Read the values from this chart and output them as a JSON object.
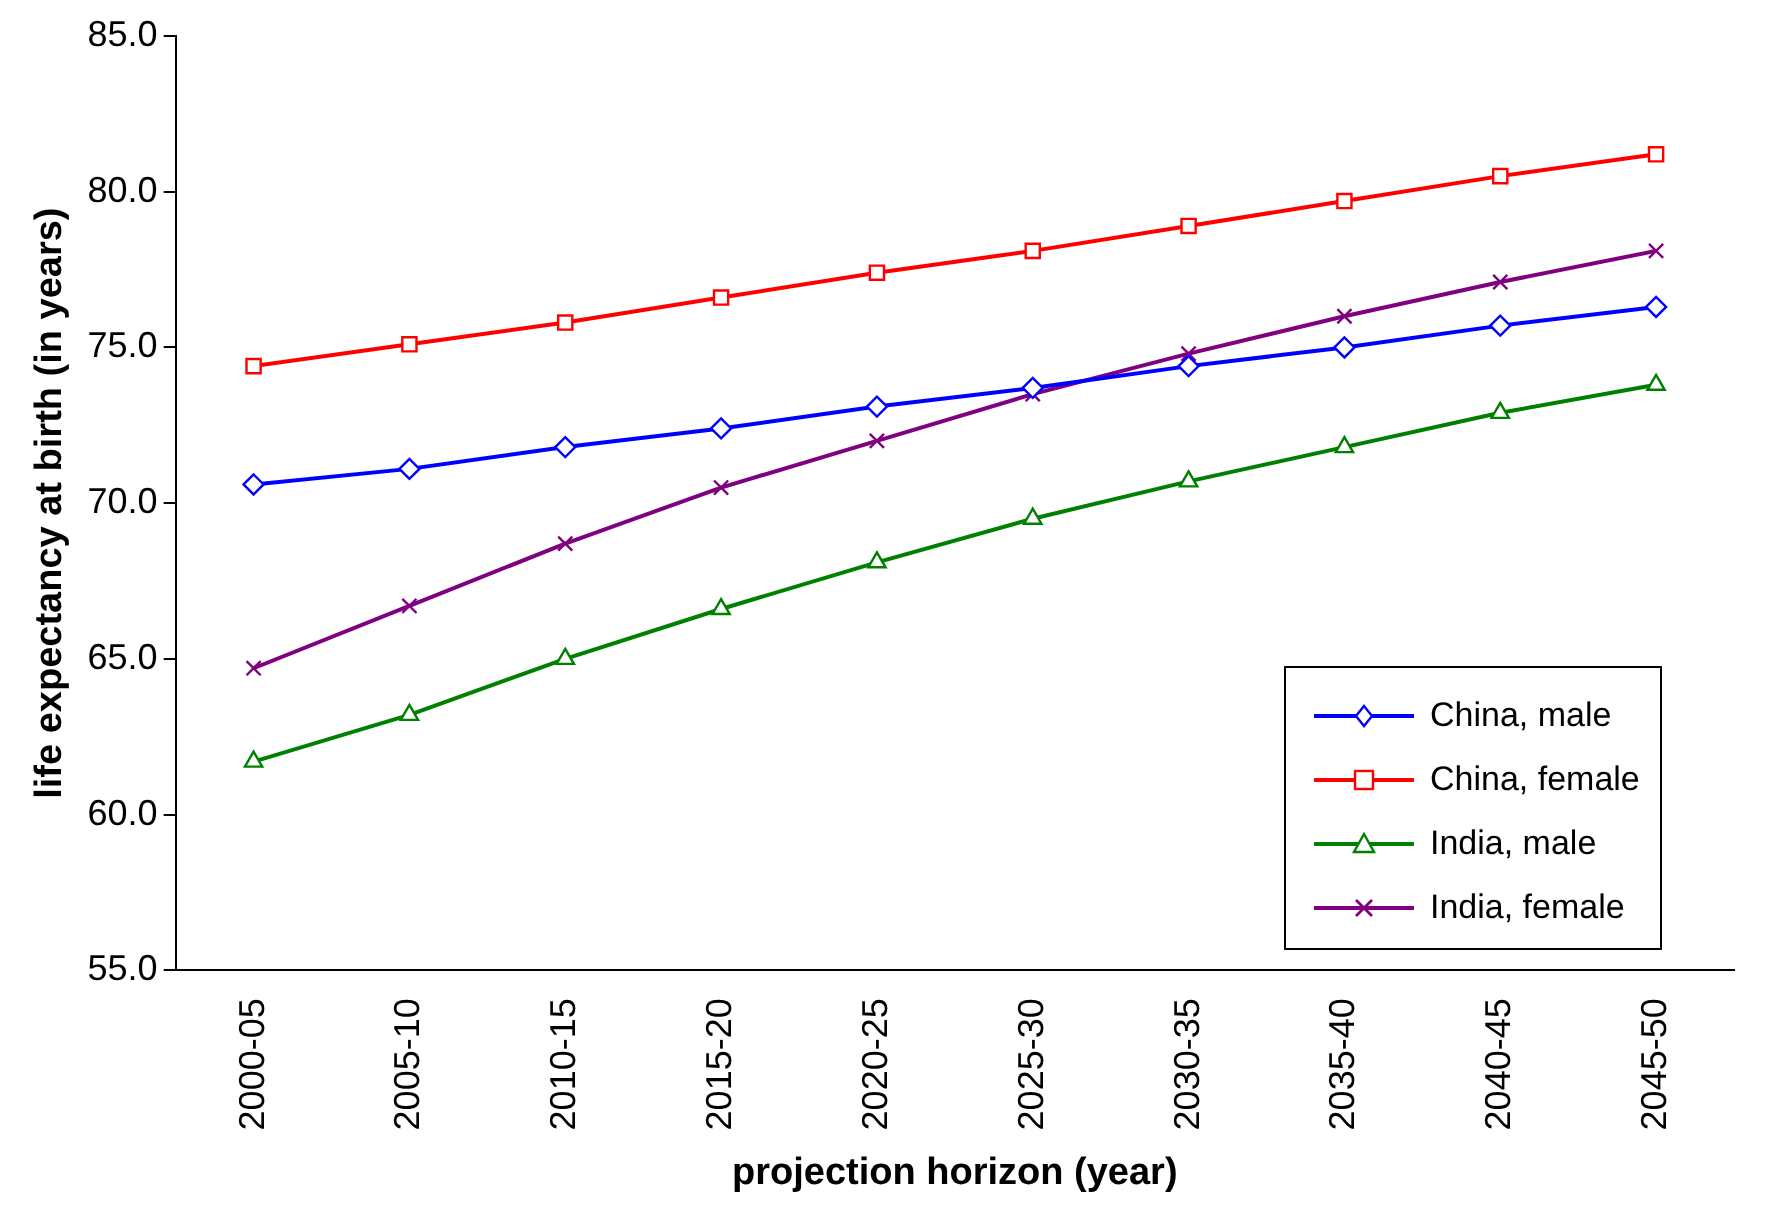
{
  "chart_data": {
    "type": "line",
    "xlabel": "projection horizon (year)",
    "ylabel": "life expectancy at birth (in years)",
    "categories": [
      "2000-05",
      "2005-10",
      "2010-15",
      "2015-20",
      "2020-25",
      "2025-30",
      "2030-35",
      "2035-40",
      "2040-45",
      "2045-50"
    ],
    "ylim": [
      55,
      85
    ],
    "yticks": [
      {
        "value": 55,
        "label": "55.0"
      },
      {
        "value": 60,
        "label": "60.0"
      },
      {
        "value": 65,
        "label": "65.0"
      },
      {
        "value": 70,
        "label": "70.0"
      },
      {
        "value": 75,
        "label": "75.0"
      },
      {
        "value": 80,
        "label": "80.0"
      },
      {
        "value": 85,
        "label": "85.0"
      }
    ],
    "grid": false,
    "legend": "bottom right",
    "line_style": "solid",
    "series": [
      {
        "name": "China, male",
        "color": "#0000ff",
        "marker": "diamond",
        "values": [
          70.6,
          71.1,
          71.8,
          72.4,
          73.1,
          73.7,
          74.4,
          75.0,
          75.7,
          76.3
        ]
      },
      {
        "name": "China, female",
        "color": "#ff0000",
        "marker": "square",
        "values": [
          74.4,
          75.1,
          75.8,
          76.6,
          77.4,
          78.1,
          78.9,
          79.7,
          80.5,
          81.2
        ]
      },
      {
        "name": "India, male",
        "color": "#008000",
        "marker": "triangle",
        "values": [
          61.7,
          63.2,
          65.0,
          66.6,
          68.1,
          69.5,
          70.7,
          71.8,
          72.9,
          73.8
        ]
      },
      {
        "name": "India, female",
        "color": "#800080",
        "marker": "cross",
        "values": [
          64.7,
          66.7,
          68.7,
          70.5,
          72.0,
          73.5,
          74.8,
          76.0,
          77.1,
          78.1
        ]
      }
    ]
  }
}
